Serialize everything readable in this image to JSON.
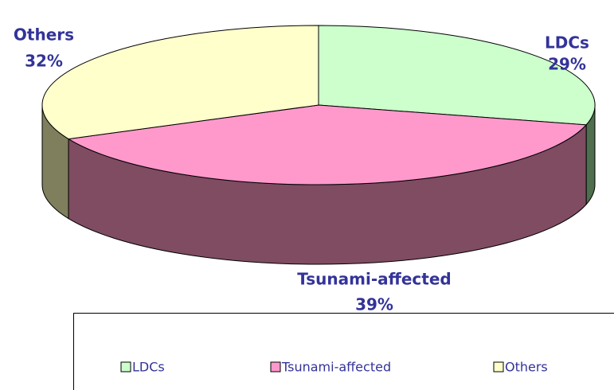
{
  "chart_data": {
    "type": "pie",
    "categories": [
      "LDCs",
      "Tsunami-affected",
      "Others"
    ],
    "values": [
      29,
      39,
      32
    ],
    "value_labels": [
      "29%",
      "39%",
      "32%"
    ],
    "colors": [
      "#ccffcc",
      "#ff99cc",
      "#ffffcc"
    ],
    "side_colors": [
      "#4e6e4e",
      "#7f4c62",
      "#7f7f5e"
    ],
    "legend": "bottom"
  }
}
